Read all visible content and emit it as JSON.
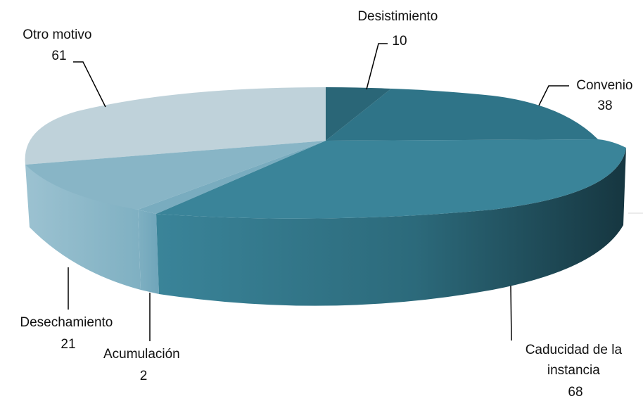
{
  "chart_data": {
    "type": "pie",
    "style": "3d",
    "title": "",
    "slices": [
      {
        "label": "Desistimiento",
        "value": 10,
        "color": "#2a6677"
      },
      {
        "label": "Convenio",
        "value": 38,
        "color": "#2f7488"
      },
      {
        "label": "Caducidad de la instancia",
        "value": 68,
        "color": "#3a8499"
      },
      {
        "label": "Acumulación",
        "value": 2,
        "color": "#79acbf"
      },
      {
        "label": "Desechamiento",
        "value": 21,
        "color": "#88b5c6"
      },
      {
        "label": "Otro motivo",
        "value": 61,
        "color": "#bfd2da"
      }
    ],
    "labels_text": [
      {
        "lines": [
          "Desistimiento",
          "10"
        ]
      },
      {
        "lines": [
          "Convenio",
          "38"
        ]
      },
      {
        "lines": [
          "Caducidad de la",
          "instancia",
          "68"
        ]
      },
      {
        "lines": [
          "Acumulación",
          "2"
        ]
      },
      {
        "lines": [
          "Desechamiento",
          "21"
        ]
      },
      {
        "lines": [
          "Otro motivo",
          "61"
        ]
      }
    ]
  }
}
